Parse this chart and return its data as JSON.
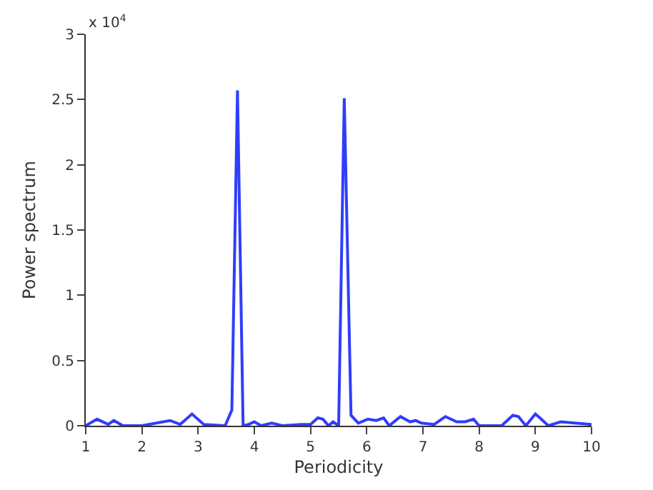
{
  "chart_data": {
    "type": "line",
    "xlabel": "Periodicity",
    "ylabel": "Power spectrum",
    "annotations": [
      "x 10$^{4}$"
    ],
    "x": [
      1.0,
      1.2,
      1.4,
      1.5,
      1.66,
      2.0,
      2.5,
      2.68,
      2.89,
      3.1,
      3.48,
      3.6,
      3.7,
      3.8,
      3.9,
      4.0,
      4.12,
      4.31,
      4.5,
      4.83,
      5.0,
      5.13,
      5.22,
      5.32,
      5.4,
      5.5,
      5.6,
      5.72,
      5.85,
      6.02,
      6.17,
      6.3,
      6.4,
      6.6,
      6.77,
      6.87,
      6.97,
      7.2,
      7.4,
      7.6,
      7.75,
      7.9,
      8.0,
      8.4,
      8.6,
      8.7,
      8.83,
      9.0,
      9.08,
      9.23,
      9.45,
      9.7,
      10.0
    ],
    "series": [
      {
        "color": "#2f3dfb",
        "values": [
          0,
          0.05,
          0.01,
          0.04,
          0,
          0,
          0.04,
          0.01,
          0.09,
          0.01,
          0,
          0.12,
          2.57,
          0,
          0.01,
          0.03,
          0,
          0.02,
          0,
          0.01,
          0.01,
          0.06,
          0.05,
          0,
          0.03,
          0,
          2.51,
          0.08,
          0.02,
          0.05,
          0.04,
          0.06,
          0,
          0.07,
          0.03,
          0.04,
          0.02,
          0.01,
          0.07,
          0.03,
          0.03,
          0.05,
          0,
          0,
          0.08,
          0.07,
          0,
          0.09,
          0.06,
          0,
          0.03,
          0.02,
          0.01
        ]
      }
    ],
    "xlim": [
      1,
      10
    ],
    "xticks": [
      1,
      2,
      3,
      4,
      5,
      6,
      7,
      8,
      9,
      10
    ],
    "ylim": [
      0,
      3
    ],
    "yticks": [
      0,
      0.5,
      1,
      1.5,
      2,
      2.5,
      3
    ],
    "grid": false,
    "marker": "none",
    "line_style": "solid"
  }
}
